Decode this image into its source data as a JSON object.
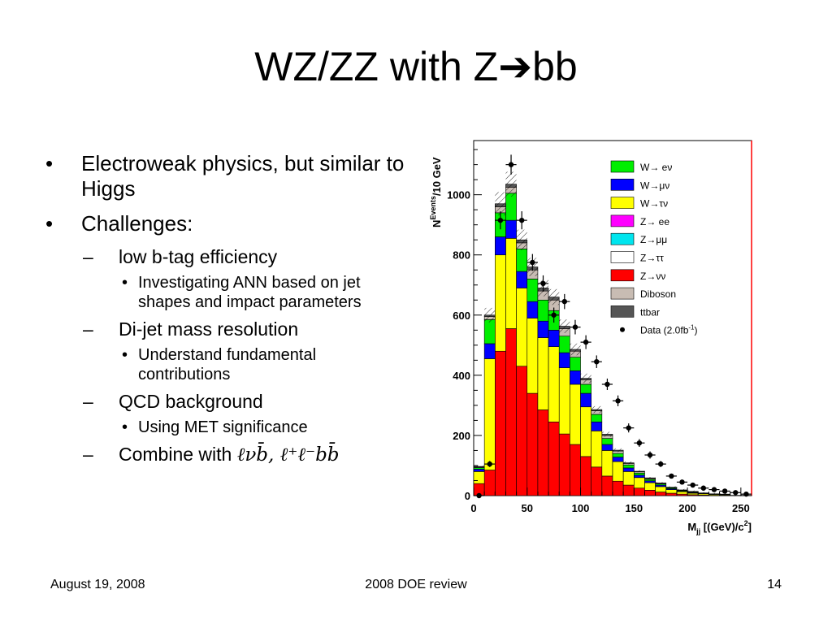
{
  "slide": {
    "title": "WZ/ZZ with Z➔bb",
    "bullets": [
      {
        "text": "Electroweak physics, but similar to Higgs",
        "children": []
      },
      {
        "text": "Challenges:",
        "children": [
          {
            "text": "low b-tag efficiency",
            "children": [
              "Investigating ANN based on jet shapes and impact parameters"
            ]
          },
          {
            "text": "Di-jet mass resolution",
            "children": [
              "Understand fundamental contributions"
            ]
          },
          {
            "text": "QCD background",
            "children": [
              "Using MET significance"
            ]
          },
          {
            "text": "Combine with ",
            "formula": "ℓνb̄,  ℓ⁺ℓ⁻bb̄",
            "children": []
          }
        ]
      }
    ],
    "bullet_marker": "•",
    "sub_marker": "–"
  },
  "footer": {
    "date": "August 19, 2008",
    "center": "2008 DOE review",
    "page": "14"
  },
  "chart_data": {
    "type": "bar",
    "stacked": true,
    "xlabel": "M_jj [(GeV)/c²]",
    "ylabel": "N^Events/10 GeV",
    "xlim": [
      0,
      260
    ],
    "ylim": [
      0,
      1180
    ],
    "x_bin_edges": [
      0,
      10,
      20,
      30,
      40,
      50,
      60,
      70,
      80,
      90,
      100,
      110,
      120,
      130,
      140,
      150,
      160,
      170,
      180,
      190,
      200,
      210,
      220,
      230,
      240,
      250,
      260
    ],
    "xticks": [
      0,
      50,
      100,
      150,
      200,
      250
    ],
    "yticks": [
      0,
      200,
      400,
      600,
      800,
      1000
    ],
    "legend_position": "top-right",
    "series": [
      {
        "name": "Z→νν",
        "color": "#ff0000",
        "values": [
          40,
          85,
          480,
          555,
          430,
          340,
          285,
          245,
          205,
          170,
          130,
          95,
          65,
          48,
          35,
          25,
          18,
          12,
          8,
          5,
          3,
          2,
          1,
          1,
          0,
          0
        ]
      },
      {
        "name": "Z→ττ",
        "color": "#ffffff",
        "values": [
          0,
          0,
          0,
          0,
          0,
          0,
          0,
          0,
          0,
          0,
          0,
          0,
          0,
          0,
          0,
          0,
          0,
          0,
          0,
          0,
          0,
          0,
          0,
          0,
          0,
          0
        ]
      },
      {
        "name": "Z→μμ",
        "color": "#00e5ee",
        "values": [
          0,
          0,
          0,
          0,
          0,
          0,
          0,
          0,
          0,
          0,
          0,
          0,
          0,
          0,
          0,
          0,
          0,
          0,
          0,
          0,
          0,
          0,
          0,
          0,
          0,
          0
        ]
      },
      {
        "name": "Z→ ee",
        "color": "#ff00ff",
        "values": [
          0,
          0,
          0,
          0,
          0,
          0,
          0,
          0,
          0,
          0,
          0,
          0,
          0,
          0,
          0,
          0,
          0,
          0,
          0,
          0,
          0,
          0,
          0,
          0,
          0,
          0
        ]
      },
      {
        "name": "W→τν",
        "color": "#ffff00",
        "values": [
          40,
          370,
          320,
          300,
          260,
          250,
          240,
          250,
          220,
          200,
          165,
          120,
          85,
          65,
          45,
          35,
          25,
          18,
          12,
          8,
          5,
          4,
          3,
          2,
          1,
          1
        ]
      },
      {
        "name": "W→μν",
        "color": "#0000ff",
        "values": [
          8,
          50,
          60,
          60,
          55,
          55,
          55,
          55,
          50,
          45,
          45,
          30,
          20,
          15,
          12,
          8,
          6,
          5,
          3,
          2,
          2,
          1,
          1,
          1,
          0,
          0
        ]
      },
      {
        "name": "W→ eν",
        "color": "#00ee00",
        "values": [
          5,
          80,
          80,
          90,
          75,
          75,
          70,
          65,
          55,
          45,
          30,
          25,
          20,
          12,
          10,
          7,
          5,
          4,
          3,
          2,
          2,
          1,
          1,
          1,
          0,
          0
        ]
      },
      {
        "name": "Diboson",
        "color": "#c8bcb3",
        "values": [
          2,
          10,
          20,
          20,
          20,
          30,
          30,
          35,
          25,
          20,
          15,
          12,
          10,
          8,
          5,
          4,
          3,
          2,
          1,
          1,
          1,
          1,
          0,
          0,
          0,
          0
        ]
      },
      {
        "name": "ttbar",
        "color": "#555555",
        "values": [
          2,
          5,
          10,
          10,
          10,
          10,
          10,
          10,
          8,
          6,
          5,
          4,
          4,
          3,
          2,
          2,
          2,
          1,
          1,
          1,
          1,
          0,
          0,
          0,
          0,
          0
        ]
      }
    ],
    "data_points": {
      "name": "Data (2.0fb⁻¹)",
      "x": [
        5,
        15,
        25,
        35,
        45,
        55,
        65,
        75,
        85,
        95,
        105,
        115,
        125,
        135,
        145,
        155,
        165,
        175,
        185,
        195,
        205,
        215,
        225,
        235,
        245,
        255
      ],
      "y": [
        0,
        105,
        915,
        1100,
        915,
        775,
        705,
        600,
        645,
        560,
        510,
        445,
        370,
        315,
        225,
        175,
        135,
        105,
        65,
        45,
        35,
        25,
        20,
        15,
        10,
        5
      ],
      "yerr": [
        5,
        10,
        30,
        33,
        30,
        28,
        27,
        25,
        25,
        24,
        23,
        21,
        19,
        18,
        15,
        13,
        12,
        10,
        8,
        7,
        6,
        5,
        4,
        4,
        3,
        2
      ]
    }
  }
}
